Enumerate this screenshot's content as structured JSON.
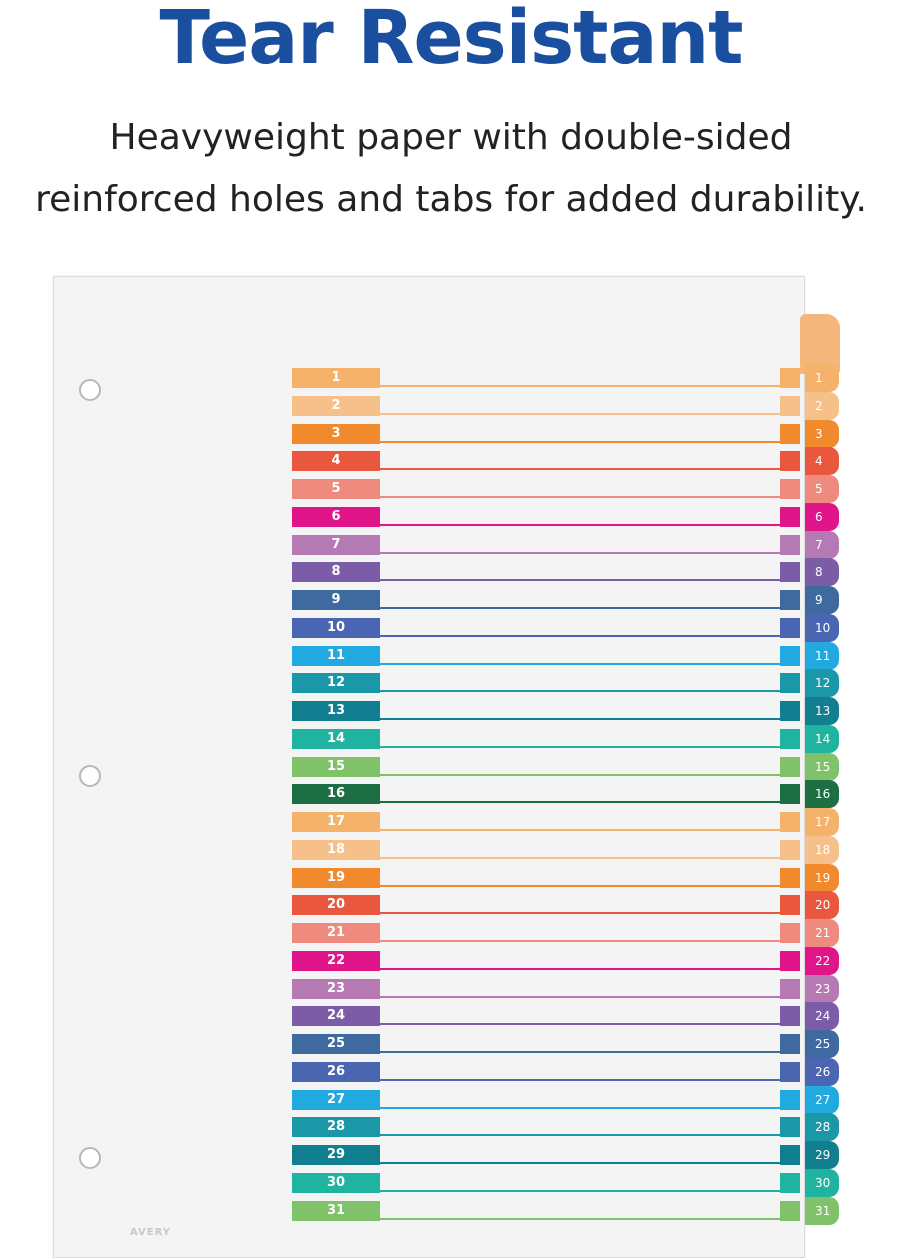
{
  "headline": "Tear Resistant",
  "subtext": {
    "line1": "Heavyweight paper with double-sided",
    "line2": "reinforced holes and tabs for added durability."
  },
  "divider": {
    "tabs": [
      {
        "label": "1",
        "color": "#f4b26a"
      },
      {
        "label": "2",
        "color": "#f5c08a"
      },
      {
        "label": "3",
        "color": "#f08a2c"
      },
      {
        "label": "4",
        "color": "#e8573e"
      },
      {
        "label": "5",
        "color": "#ef8a7e"
      },
      {
        "label": "6",
        "color": "#e0158a"
      },
      {
        "label": "7",
        "color": "#b57ab3"
      },
      {
        "label": "8",
        "color": "#7d5ca7"
      },
      {
        "label": "9",
        "color": "#3f6aa0"
      },
      {
        "label": "10",
        "color": "#4a66b3"
      },
      {
        "label": "11",
        "color": "#22a9e0"
      },
      {
        "label": "12",
        "color": "#1a98a8"
      },
      {
        "label": "13",
        "color": "#117f8f"
      },
      {
        "label": "14",
        "color": "#1fb3a0"
      },
      {
        "label": "15",
        "color": "#7fc26a"
      },
      {
        "label": "16",
        "color": "#1d6e43"
      },
      {
        "label": "17",
        "color": "#f4b26a"
      },
      {
        "label": "18",
        "color": "#f5c08a"
      },
      {
        "label": "19",
        "color": "#f08a2c"
      },
      {
        "label": "20",
        "color": "#e8573e"
      },
      {
        "label": "21",
        "color": "#ef8a7e"
      },
      {
        "label": "22",
        "color": "#e0158a"
      },
      {
        "label": "23",
        "color": "#b57ab3"
      },
      {
        "label": "24",
        "color": "#7d5ca7"
      },
      {
        "label": "25",
        "color": "#3f6aa0"
      },
      {
        "label": "26",
        "color": "#4a66b3"
      },
      {
        "label": "27",
        "color": "#22a9e0"
      },
      {
        "label": "28",
        "color": "#1a98a8"
      },
      {
        "label": "29",
        "color": "#117f8f"
      },
      {
        "label": "30",
        "color": "#1fb3a0"
      },
      {
        "label": "31",
        "color": "#7fc26a"
      }
    ]
  },
  "brand_mark": "AVERY"
}
